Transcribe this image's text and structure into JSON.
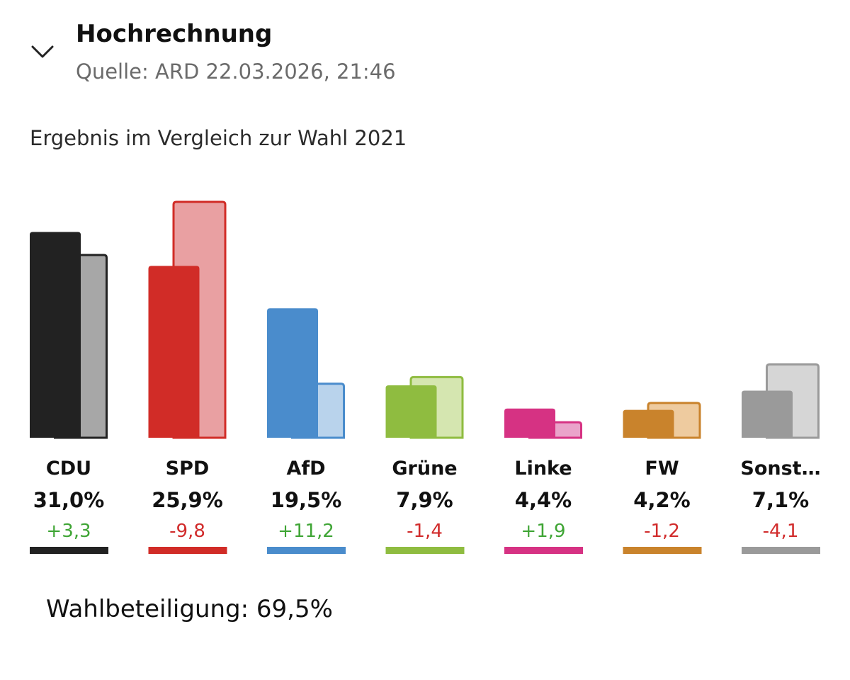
{
  "header": {
    "title": "Hochrechnung",
    "source": "Quelle: ARD 22.03.2026, 21:46",
    "toggle_icon": "chevron-down-icon"
  },
  "subtitle": "Ergebnis im Vergleich zur Wahl 2021",
  "footer": {
    "turnout": "Wahlbeteiligung: 69,5%"
  },
  "colors": {
    "positive_change": "#3fa535",
    "negative_change": "#d12b2b"
  },
  "chart_data": {
    "type": "bar",
    "title": "Ergebnis im Vergleich zur Wahl 2021",
    "categories": [
      "CDU",
      "SPD",
      "AfD",
      "Grüne",
      "Linke",
      "FW",
      "Sonst…"
    ],
    "series": [
      {
        "name": "",
        "values": [
          31.0,
          25.9,
          19.5,
          7.9,
          4.4,
          4.2,
          7.1
        ]
      },
      {
        "name": "2021",
        "values": [
          27.7,
          35.7,
          8.3,
          9.3,
          2.5,
          5.4,
          11.2
        ]
      }
    ],
    "value_labels": [
      "31,0%",
      "25,9%",
      "19,5%",
      "7,9%",
      "4,4%",
      "4,2%",
      "7,1%"
    ],
    "change_labels": [
      "+3,3",
      "-9,8",
      "+11,2",
      "-1,4",
      "+1,9",
      "-1,2",
      "-4,1"
    ],
    "colors": {
      "current": [
        "#222222",
        "#d12c27",
        "#4a8ccc",
        "#8fbc40",
        "#d63283",
        "#c9832c",
        "#9a9a9a"
      ],
      "previous_fill": [
        "#a7a7a7",
        "#e9a0a2",
        "#b9d3ec",
        "#d5e6b0",
        "#eaa3ca",
        "#eecb9f",
        "#d6d6d6"
      ],
      "previous_stroke": [
        "#222222",
        "#d12c27",
        "#4a8ccc",
        "#8fbc40",
        "#d63283",
        "#c9832c",
        "#9a9a9a"
      ]
    },
    "ylim": [
      0,
      38
    ],
    "grid": false,
    "legend": "none"
  }
}
